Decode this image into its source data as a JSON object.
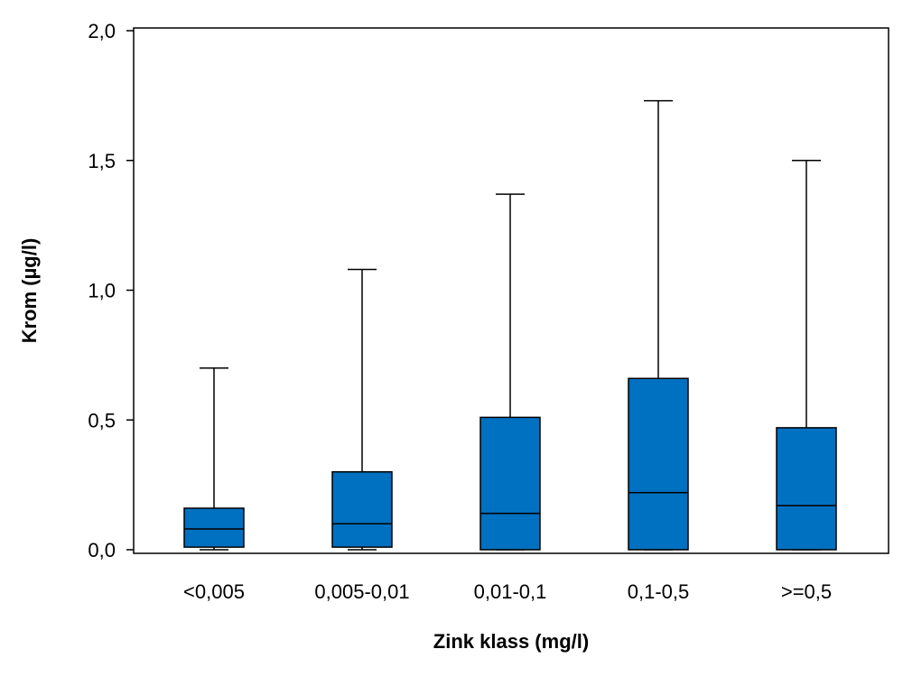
{
  "chart_data": {
    "type": "box",
    "title": "",
    "xlabel": "Zink klass (mg/l)",
    "ylabel": "Krom (µg/l)",
    "ylim": [
      0,
      2
    ],
    "yticks": [
      {
        "value": 0,
        "label": "0,0"
      },
      {
        "value": 0.5,
        "label": "0,5"
      },
      {
        "value": 1,
        "label": "1,0"
      },
      {
        "value": 1.5,
        "label": "1,5"
      },
      {
        "value": 2,
        "label": "2,0"
      }
    ],
    "categories": [
      "<0,005",
      "0,005-0,01",
      "0,01-0,1",
      "0,1-0,5",
      ">=0,5"
    ],
    "boxes": [
      {
        "min": 0.0,
        "q1": 0.01,
        "median": 0.08,
        "q3": 0.16,
        "max": 0.7
      },
      {
        "min": 0.0,
        "q1": 0.01,
        "median": 0.1,
        "q3": 0.3,
        "max": 1.08
      },
      {
        "min": 0.0,
        "q1": 0.0,
        "median": 0.14,
        "q3": 0.51,
        "max": 1.37
      },
      {
        "min": 0.0,
        "q1": 0.0,
        "median": 0.22,
        "q3": 0.66,
        "max": 1.73
      },
      {
        "min": 0.0,
        "q1": 0.0,
        "median": 0.17,
        "q3": 0.47,
        "max": 1.5
      }
    ],
    "box_color": "#0070C0",
    "grid": false,
    "legend": "none"
  }
}
